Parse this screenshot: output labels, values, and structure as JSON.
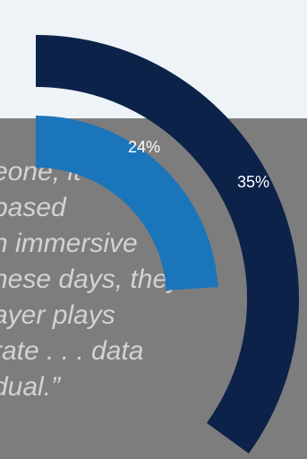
{
  "quote": {
    "lines": [
      "eone, it",
      "based",
      "n immersive",
      "hese days, they",
      "ayer plays",
      "rate . . . data",
      "dual.”"
    ]
  },
  "colors": {
    "outer_arc": "#0c2249",
    "inner_arc": "#1b75bb",
    "panel": "#7d7d7d",
    "quote_text": "#d3d3d3",
    "top_band": "#eef3f7"
  },
  "chart_data": {
    "type": "radial-bar",
    "series": [
      {
        "label": "35%",
        "value": 35
      },
      {
        "label": "24%",
        "value": 24
      }
    ]
  }
}
